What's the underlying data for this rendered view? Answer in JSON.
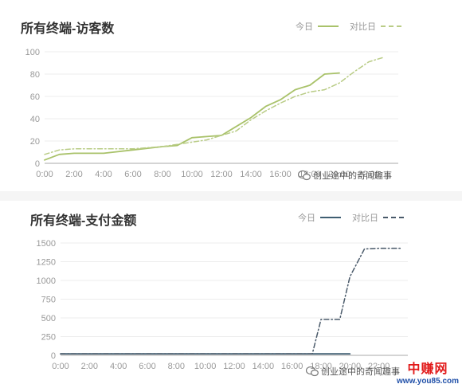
{
  "colors": {
    "visitors_today": "#a9c26a",
    "visitors_compare": "#b9cc86",
    "payment_today": "#3f5e72",
    "payment_compare": "#4a5a6a",
    "grid": "#ececec",
    "axis": "#bbbbbb",
    "tick_text": "#999999"
  },
  "legend": {
    "today": "今日",
    "compare": "对比日"
  },
  "watermark": {
    "text": "创业途中的奇闻趣事"
  },
  "site": {
    "name": "中赚网",
    "url": "www.you85.com"
  },
  "chart_data": [
    {
      "type": "line",
      "title": "所有终端-访客数",
      "categories": [
        "0:00",
        "2:00",
        "4:00",
        "6:00",
        "8:00",
        "10:00",
        "12:00",
        "14:00",
        "16:00",
        "18:00",
        "20:00",
        "22:00"
      ],
      "yticks": [
        0,
        20,
        40,
        60,
        80,
        100
      ],
      "ylim": [
        0,
        100
      ],
      "xlim": [
        0,
        24
      ],
      "series": [
        {
          "name": "今日",
          "style": "solid",
          "x": [
            0,
            1,
            2,
            4,
            6,
            8,
            9,
            10,
            11,
            12,
            13,
            14,
            15,
            16,
            17,
            18,
            19,
            20
          ],
          "y": [
            3,
            8,
            9,
            9,
            12,
            15,
            16,
            23,
            24,
            25,
            33,
            41,
            51,
            57,
            66,
            70,
            80,
            81
          ]
        },
        {
          "name": "对比日",
          "style": "dashdot",
          "x": [
            0,
            1,
            2,
            4,
            6,
            8,
            9,
            10,
            11,
            12,
            13,
            14,
            15,
            16,
            17,
            18,
            19,
            20,
            21,
            22,
            23
          ],
          "y": [
            8,
            12,
            13,
            13,
            13,
            15,
            17,
            19,
            21,
            25,
            29,
            39,
            47,
            54,
            60,
            64,
            66,
            72,
            82,
            91,
            95
          ]
        }
      ]
    },
    {
      "type": "line",
      "title": "所有终端-支付金额",
      "categories": [
        "0:00",
        "2:00",
        "4:00",
        "6:00",
        "8:00",
        "10:00",
        "12:00",
        "14:00",
        "16:00",
        "18:00",
        "20:00",
        "22:00"
      ],
      "yticks": [
        0,
        250,
        500,
        750,
        1000,
        1250,
        1500
      ],
      "ylim": [
        0,
        1500
      ],
      "xlim": [
        0,
        24
      ],
      "series": [
        {
          "name": "今日",
          "style": "solid",
          "x": [
            0,
            20
          ],
          "y": [
            20,
            20
          ]
        },
        {
          "name": "对比日",
          "style": "dashdot",
          "x": [
            0,
            17.4,
            18,
            19.3,
            20,
            21,
            22,
            23.5
          ],
          "y": [
            20,
            20,
            480,
            480,
            1050,
            1420,
            1430,
            1430
          ]
        }
      ]
    }
  ]
}
